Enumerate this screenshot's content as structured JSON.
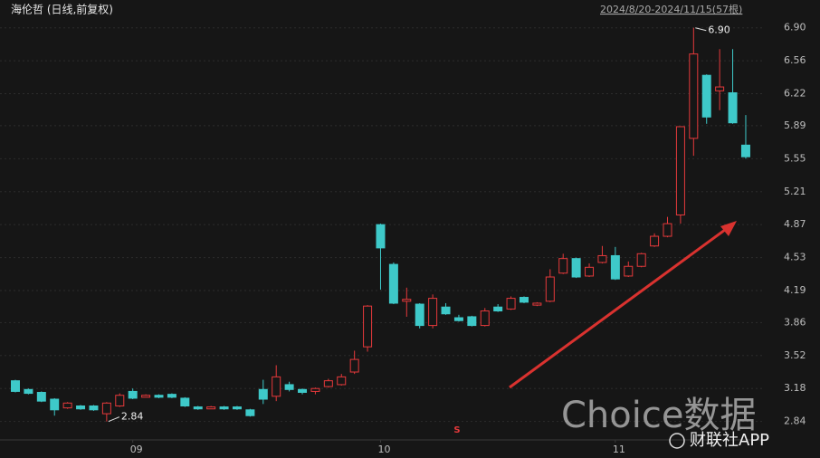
{
  "chart_data": {
    "type": "candlestick",
    "title": "海伦哲 (日线,前复权)",
    "subtitle": "2024/8/20-2024/11/15(57根)",
    "x": [
      null,
      null,
      null,
      null,
      null,
      null,
      null,
      null,
      null,
      "09",
      null,
      null,
      null,
      null,
      null,
      null,
      null,
      null,
      null,
      null,
      null,
      null,
      null,
      null,
      null,
      null,
      null,
      null,
      "10",
      null,
      null,
      null,
      null,
      null,
      null,
      null,
      null,
      null,
      null,
      null,
      null,
      null,
      null,
      null,
      null,
      null,
      "11",
      null,
      null,
      null,
      null,
      null,
      null,
      null,
      null,
      null,
      null
    ],
    "open": [
      3.26,
      3.17,
      3.14,
      3.07,
      2.98,
      3.0,
      3.0,
      2.92,
      3.0,
      3.15,
      3.09,
      3.11,
      3.12,
      3.08,
      2.99,
      2.97,
      2.99,
      2.99,
      2.96,
      3.17,
      3.1,
      3.22,
      3.17,
      3.15,
      3.2,
      3.22,
      3.35,
      3.61,
      4.87,
      4.46,
      4.08,
      4.05,
      3.83,
      4.02,
      3.91,
      3.92,
      3.83,
      4.02,
      4.0,
      4.12,
      4.04,
      4.08,
      4.37,
      4.52,
      4.34,
      4.48,
      4.55,
      4.34,
      4.44,
      4.65,
      4.75,
      4.97,
      5.76,
      6.41,
      6.25,
      6.23,
      5.69
    ],
    "high": [
      3.27,
      3.18,
      3.15,
      3.08,
      3.04,
      3.01,
      3.01,
      3.04,
      3.13,
      3.18,
      3.12,
      3.12,
      3.13,
      3.09,
      3.0,
      3.0,
      3.0,
      3.0,
      2.97,
      3.27,
      3.42,
      3.25,
      3.18,
      3.19,
      3.28,
      3.33,
      3.57,
      4.04,
      4.88,
      4.48,
      4.22,
      4.06,
      4.15,
      4.06,
      3.94,
      3.93,
      4.01,
      4.05,
      4.13,
      4.13,
      4.07,
      4.41,
      4.57,
      4.53,
      4.47,
      4.65,
      4.64,
      4.49,
      4.58,
      4.78,
      4.95,
      5.88,
      6.9,
      6.42,
      6.68,
      6.68,
      6.0
    ],
    "low": [
      3.14,
      3.12,
      3.04,
      2.9,
      2.97,
      2.96,
      2.95,
      2.84,
      2.99,
      3.07,
      3.09,
      3.08,
      3.08,
      2.99,
      2.96,
      2.97,
      2.96,
      2.96,
      2.89,
      3.02,
      3.05,
      3.15,
      3.12,
      3.12,
      3.19,
      3.21,
      3.33,
      3.56,
      4.2,
      4.05,
      3.92,
      3.8,
      3.8,
      3.94,
      3.87,
      3.82,
      3.82,
      3.97,
      3.99,
      4.06,
      4.03,
      4.07,
      4.36,
      4.32,
      4.33,
      4.47,
      4.3,
      4.33,
      4.43,
      4.64,
      4.74,
      4.88,
      5.58,
      5.91,
      6.05,
      5.91,
      5.55
    ],
    "close": [
      3.15,
      3.13,
      3.05,
      2.96,
      3.03,
      2.97,
      2.96,
      3.03,
      3.11,
      3.08,
      3.11,
      3.09,
      3.09,
      3.0,
      2.97,
      2.99,
      2.97,
      2.97,
      2.9,
      3.07,
      3.3,
      3.17,
      3.14,
      3.18,
      3.26,
      3.3,
      3.48,
      4.03,
      4.63,
      4.06,
      4.1,
      3.83,
      4.11,
      3.95,
      3.88,
      3.83,
      3.98,
      3.98,
      4.11,
      4.07,
      4.06,
      4.33,
      4.52,
      4.33,
      4.43,
      4.55,
      4.31,
      4.44,
      4.57,
      4.75,
      4.88,
      5.88,
      6.63,
      5.98,
      6.29,
      5.92,
      5.57
    ],
    "up_color": "#e5393b",
    "down_color": "#3ec9c9",
    "ylim": [
      2.65,
      7.0
    ],
    "yticks": [
      {
        "value": 6.9,
        "label": "6.90"
      },
      6.56,
      6.22,
      5.89,
      5.55,
      5.21,
      4.87,
      4.53,
      4.19,
      3.86,
      3.52,
      3.18,
      2.84
    ],
    "grid": true,
    "annotations": [
      {
        "label": "6.90",
        "value": 6.9,
        "kind": "high"
      },
      {
        "label": "2.84",
        "value": 2.84,
        "kind": "low"
      }
    ],
    "event_mark": "S",
    "watermark": "Choice数据",
    "source": "财联社APP"
  }
}
